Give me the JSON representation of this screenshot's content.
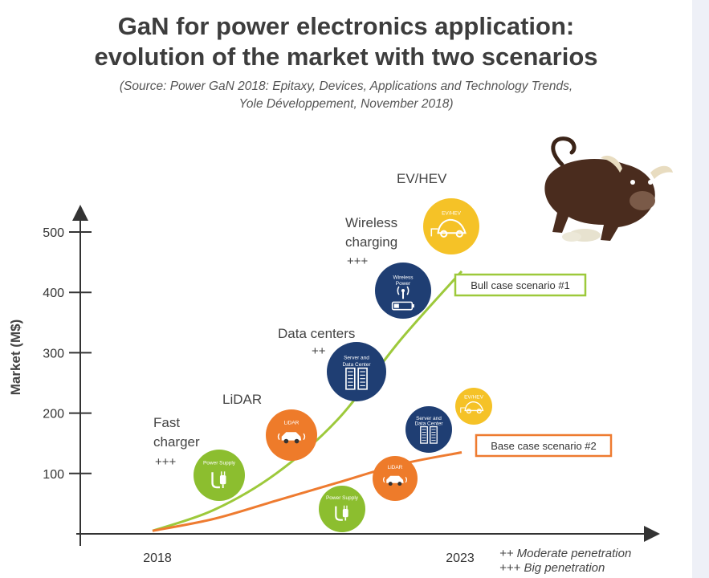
{
  "title_lines": [
    "GaN for power electronics application:",
    "evolution of the market with two scenarios"
  ],
  "source_lines": [
    "(Source: Power GaN 2018: Epitaxy, Devices, Applications and Technology Trends,",
    "Yole Développement, November 2018)"
  ],
  "chart_data": {
    "type": "line",
    "ylabel": "Market (M$)",
    "y_ticks": [
      100,
      200,
      300,
      400,
      500
    ],
    "x_tick_labels": [
      "2018",
      "2023"
    ],
    "ylim": [
      0,
      540
    ],
    "grid": false,
    "series": [
      {
        "name": "Bull case scenario #1",
        "color": "#9dc93b",
        "x": [
          2018,
          2019,
          2020,
          2021,
          2022,
          2023
        ],
        "y": [
          5,
          40,
          100,
          190,
          320,
          435
        ]
      },
      {
        "name": "Base case scenario #2",
        "color": "#ee7b30",
        "x": [
          2018,
          2019,
          2020,
          2021,
          2022,
          2023
        ],
        "y": [
          5,
          25,
          55,
          85,
          115,
          135
        ]
      }
    ],
    "applications_bull": [
      {
        "name_lines": [
          "Fast",
          "charger"
        ],
        "penetration": "+++",
        "circle_text": [
          "Power Supply"
        ],
        "color": "#8cbe2f",
        "icon": "plug-icon"
      },
      {
        "name_lines": [
          "LiDAR"
        ],
        "penetration": "",
        "circle_text": [
          "LiDAR"
        ],
        "color": "#ee7b2a",
        "icon": "car-icon"
      },
      {
        "name_lines": [
          "Data centers"
        ],
        "penetration": "++",
        "circle_text": [
          "Server and",
          "Data Center"
        ],
        "color": "#1f3e73",
        "icon": "server-icon"
      },
      {
        "name_lines": [
          "Wireless",
          "charging"
        ],
        "penetration": "+++",
        "circle_text": [
          "Wireless",
          "Power"
        ],
        "color": "#1f3e73",
        "icon": "wireless-icon"
      },
      {
        "name_lines": [
          "EV/HEV"
        ],
        "penetration": "",
        "circle_text": [
          "EV/HEV"
        ],
        "color": "#f5c227",
        "icon": "ev-car-icon"
      }
    ],
    "applications_base": [
      {
        "circle_text": [
          "Power Supply"
        ],
        "color": "#8cbe2f",
        "icon": "plug-icon"
      },
      {
        "circle_text": [
          "LiDAR"
        ],
        "color": "#ee7b2a",
        "icon": "car-icon"
      },
      {
        "circle_text": [
          "Server and",
          "Data Center"
        ],
        "color": "#1f3e73",
        "icon": "server-icon"
      },
      {
        "circle_text": [
          "EV/HEV"
        ],
        "color": "#f5c227",
        "icon": "ev-car-icon"
      }
    ],
    "legend": [
      "++ Moderate penetration",
      "+++ Big penetration"
    ],
    "decoration": "bull-icon"
  }
}
